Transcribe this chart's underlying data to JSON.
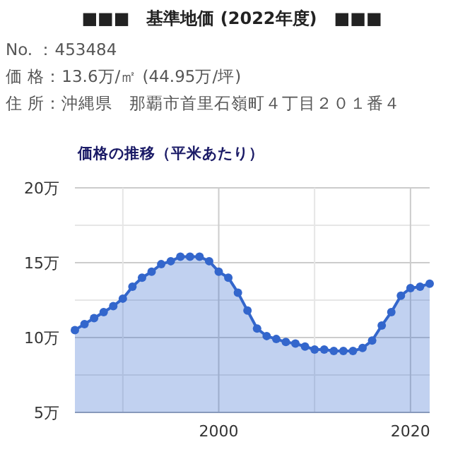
{
  "chart_data": {
    "type": "area",
    "title": "■■■　基準地価 (2022年度)　■■■",
    "subtitle": "価格の推移（平米あたり）",
    "annotations": [
      "No. ：453484",
      "価 格：13.6万/㎡ (44.95万/坪)",
      "住 所：沖縄県　那覇市首里石嶺町４丁目２０１番４"
    ],
    "x": [
      1985,
      1986,
      1987,
      1988,
      1989,
      1990,
      1991,
      1992,
      1993,
      1994,
      1995,
      1996,
      1997,
      1998,
      1999,
      2000,
      2001,
      2002,
      2003,
      2004,
      2005,
      2006,
      2007,
      2008,
      2009,
      2010,
      2011,
      2012,
      2013,
      2014,
      2015,
      2016,
      2017,
      2018,
      2019,
      2020,
      2021,
      2022
    ],
    "series": [
      {
        "color": "#3366cc",
        "values": [
          10.5,
          10.9,
          11.3,
          11.7,
          12.1,
          12.6,
          13.4,
          14.0,
          14.4,
          14.9,
          15.1,
          15.4,
          15.4,
          15.4,
          15.1,
          14.4,
          14.0,
          13.0,
          11.8,
          10.6,
          10.1,
          9.9,
          9.7,
          9.6,
          9.4,
          9.2,
          9.2,
          9.1,
          9.1,
          9.1,
          9.3,
          9.8,
          10.8,
          11.7,
          12.8,
          13.3,
          13.4,
          13.6
        ]
      }
    ],
    "xlim": [
      1985,
      2022
    ],
    "ylim": [
      5,
      20
    ],
    "xticks": [
      {
        "value": 1990,
        "label": null
      },
      2000,
      {
        "value": 2010,
        "label": null
      },
      2020
    ],
    "yticks": [
      {
        "value": 5,
        "label": "5万"
      },
      {
        "value": 7.5,
        "label": null
      },
      {
        "value": 10,
        "label": "10万"
      },
      {
        "value": 12.5,
        "label": null
      },
      {
        "value": 15,
        "label": "15万"
      },
      {
        "value": 17.5,
        "label": null
      },
      {
        "value": 20,
        "label": "20万"
      }
    ],
    "grid": true,
    "marker": "circle",
    "line_style": "solid"
  }
}
